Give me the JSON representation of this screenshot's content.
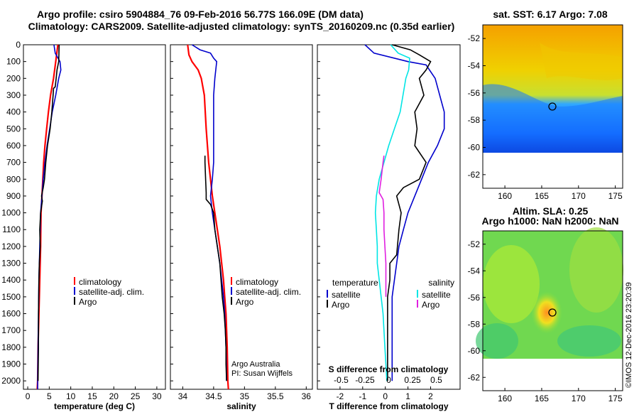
{
  "header": {
    "title_line1": "Argo profile: csiro 5904884_76 09-Feb-2016 56.77S 166.09E (DM data)",
    "title_line2": "Climatology: CARS2009. Satellite-adjusted climatology: synTS_20160209.nc (0.35d earlier)"
  },
  "colors": {
    "climatology": "#ff0000",
    "satellite": "#0000cc",
    "argo": "#000000",
    "sat_salinity": "#00e5e5",
    "argo_salinity": "#e020e0"
  },
  "chart_data": [
    {
      "type": "line",
      "id": "temperature",
      "xlabel": "temperature (deg C)",
      "ylabel": "",
      "xlim": [
        -1,
        32
      ],
      "ylim": [
        2050,
        0
      ],
      "xticks": [
        "0",
        "5",
        "10",
        "15",
        "20",
        "25",
        "30"
      ],
      "xtick_values": [
        0,
        5,
        10,
        15,
        20,
        25,
        30
      ],
      "yticks": [
        "0",
        "100",
        "200",
        "300",
        "400",
        "500",
        "600",
        "700",
        "800",
        "900",
        "1000",
        "1100",
        "1200",
        "1300",
        "1400",
        "1500",
        "1600",
        "1700",
        "1800",
        "1900",
        "2000"
      ],
      "ytick_values": [
        0,
        100,
        200,
        300,
        400,
        500,
        600,
        700,
        800,
        900,
        1000,
        1100,
        1200,
        1300,
        1400,
        1500,
        1600,
        1700,
        1800,
        1900,
        2000
      ],
      "legend": [
        "climatology",
        "satellite-adj. clim.",
        "Argo"
      ],
      "series": [
        {
          "name": "climatology",
          "color": "#ff0000",
          "points": [
            [
              7.0,
              0
            ],
            [
              6.5,
              100
            ],
            [
              6.0,
              200
            ],
            [
              5.3,
              300
            ],
            [
              4.8,
              400
            ],
            [
              4.4,
              500
            ],
            [
              4.0,
              600
            ],
            [
              3.7,
              700
            ],
            [
              3.5,
              800
            ],
            [
              3.3,
              900
            ],
            [
              3.1,
              1000
            ],
            [
              3.0,
              1200
            ],
            [
              2.8,
              1400
            ],
            [
              2.6,
              1600
            ],
            [
              2.4,
              1800
            ],
            [
              2.3,
              2000
            ],
            [
              2.2,
              2050
            ]
          ]
        },
        {
          "name": "satellite-adj. clim.",
          "color": "#0000cc",
          "points": [
            [
              6.1,
              0
            ],
            [
              6.4,
              50
            ],
            [
              7.5,
              100
            ],
            [
              7.7,
              150
            ],
            [
              7.2,
              200
            ],
            [
              6.5,
              300
            ],
            [
              5.7,
              400
            ],
            [
              5.1,
              500
            ],
            [
              4.5,
              600
            ],
            [
              4.0,
              700
            ],
            [
              3.6,
              800
            ],
            [
              3.3,
              900
            ],
            [
              3.0,
              1000
            ],
            [
              2.8,
              1200
            ],
            [
              2.6,
              1400
            ],
            [
              2.5,
              1600
            ],
            [
              2.4,
              1800
            ],
            [
              2.3,
              2000
            ],
            [
              2.3,
              2050
            ]
          ]
        },
        {
          "name": "Argo",
          "color": "#000000",
          "points": [
            [
              7.3,
              0
            ],
            [
              7.2,
              100
            ],
            [
              6.8,
              150
            ],
            [
              6.6,
              200
            ],
            [
              6.4,
              250
            ],
            [
              6.0,
              260
            ],
            [
              5.9,
              300
            ],
            [
              5.6,
              400
            ],
            [
              5.2,
              500
            ],
            [
              4.6,
              600
            ],
            [
              4.2,
              700
            ],
            [
              3.9,
              800
            ],
            [
              3.6,
              850
            ],
            [
              3.2,
              900
            ],
            [
              3.4,
              930
            ],
            [
              3.0,
              1000
            ],
            [
              2.8,
              1100
            ],
            [
              2.9,
              1200
            ],
            [
              2.7,
              1300
            ],
            [
              2.6,
              1400
            ],
            [
              2.5,
              1600
            ],
            [
              2.5,
              1800
            ],
            [
              2.4,
              2000
            ]
          ]
        }
      ]
    },
    {
      "type": "line",
      "id": "salinity",
      "xlabel": "salinity",
      "xlim": [
        33.8,
        36.1
      ],
      "ylim": [
        2050,
        0
      ],
      "xticks": [
        "34",
        "34.5",
        "35",
        "35.5",
        "36"
      ],
      "xtick_values": [
        34,
        34.5,
        35,
        35.5,
        36
      ],
      "legend": [
        "climatology",
        "satellite-adj. clim.",
        "Argo"
      ],
      "series": [
        {
          "name": "climatology",
          "color": "#ff0000",
          "points": [
            [
              34.08,
              0
            ],
            [
              34.1,
              60
            ],
            [
              34.15,
              100
            ],
            [
              34.25,
              150
            ],
            [
              34.3,
              200
            ],
            [
              34.35,
              300
            ],
            [
              34.38,
              500
            ],
            [
              34.42,
              700
            ],
            [
              34.45,
              800
            ],
            [
              34.48,
              900
            ],
            [
              34.52,
              1000
            ],
            [
              34.56,
              1100
            ],
            [
              34.6,
              1200
            ],
            [
              34.63,
              1300
            ],
            [
              34.66,
              1400
            ],
            [
              34.68,
              1500
            ],
            [
              34.7,
              1600
            ],
            [
              34.72,
              1800
            ],
            [
              34.73,
              2000
            ],
            [
              34.74,
              2050
            ]
          ]
        },
        {
          "name": "satellite-adj. clim.",
          "color": "#0000cc",
          "points": [
            [
              34.15,
              0
            ],
            [
              34.28,
              30
            ],
            [
              34.45,
              50
            ],
            [
              34.5,
              80
            ],
            [
              34.55,
              100
            ],
            [
              34.52,
              200
            ],
            [
              34.5,
              300
            ],
            [
              34.5,
              500
            ],
            [
              34.5,
              700
            ],
            [
              34.48,
              800
            ],
            [
              34.45,
              900
            ],
            [
              34.48,
              1000
            ],
            [
              34.52,
              1100
            ],
            [
              34.56,
              1200
            ],
            [
              34.6,
              1300
            ],
            [
              34.63,
              1400
            ],
            [
              34.66,
              1500
            ],
            [
              34.68,
              1600
            ],
            [
              34.7,
              1800
            ],
            [
              34.71,
              2000
            ]
          ]
        },
        {
          "name": "Argo",
          "color": "#000000",
          "points": [
            [
              34.36,
              660
            ],
            [
              34.36,
              700
            ],
            [
              34.37,
              800
            ],
            [
              34.38,
              880
            ],
            [
              34.38,
              920
            ],
            [
              34.45,
              950
            ],
            [
              34.5,
              1000
            ],
            [
              34.52,
              1100
            ],
            [
              34.56,
              1200
            ],
            [
              34.6,
              1300
            ],
            [
              34.62,
              1400
            ],
            [
              34.64,
              1500
            ],
            [
              34.67,
              1600
            ],
            [
              34.69,
              1700
            ],
            [
              34.7,
              1800
            ],
            [
              34.7,
              1900
            ],
            [
              34.71,
              2000
            ]
          ]
        }
      ],
      "annotations": [
        "Argo Australia",
        "PI: Susan Wijffels"
      ]
    },
    {
      "type": "line",
      "id": "difference",
      "xlabel": "T difference from climatology",
      "xlabel_top": "S difference from climatology",
      "xlim": [
        -3,
        3.3
      ],
      "ylim": [
        2050,
        0
      ],
      "xticks": [
        "-2",
        "-1",
        "0",
        "1",
        "2"
      ],
      "xtick_values": [
        -2,
        -1,
        0,
        1,
        2
      ],
      "sticks": [
        "-0.5",
        "-0.25",
        "0",
        "0.25",
        "0.5"
      ],
      "stick_values": [
        -0.5,
        -0.25,
        0,
        0.25,
        0.5
      ],
      "legend_left_title": "temperature",
      "legend_right_title": "salinity",
      "legend_left": [
        "satellite",
        "Argo"
      ],
      "legend_right": [
        "satellite",
        "Argo"
      ],
      "series": [
        {
          "name": "T satellite",
          "color": "#0000cc",
          "axis": "T",
          "points": [
            [
              -0.9,
              0
            ],
            [
              -0.5,
              50
            ],
            [
              1.0,
              100
            ],
            [
              1.8,
              120
            ],
            [
              2.2,
              200
            ],
            [
              2.4,
              300
            ],
            [
              2.6,
              400
            ],
            [
              2.6,
              500
            ],
            [
              2.3,
              600
            ],
            [
              1.9,
              700
            ],
            [
              1.6,
              800
            ],
            [
              1.3,
              900
            ],
            [
              1.0,
              1000
            ],
            [
              0.8,
              1100
            ],
            [
              0.6,
              1200
            ],
            [
              0.5,
              1300
            ],
            [
              0.4,
              1400
            ],
            [
              0.3,
              1500
            ],
            [
              0.3,
              1700
            ],
            [
              0.3,
              2000
            ]
          ]
        },
        {
          "name": "T Argo",
          "color": "#000000",
          "axis": "T",
          "points": [
            [
              0.3,
              0
            ],
            [
              1.1,
              30
            ],
            [
              1.5,
              60
            ],
            [
              2.0,
              100
            ],
            [
              1.8,
              150
            ],
            [
              1.5,
              200
            ],
            [
              1.7,
              300
            ],
            [
              1.3,
              400
            ],
            [
              1.4,
              500
            ],
            [
              1.3,
              600
            ],
            [
              1.8,
              700
            ],
            [
              1.5,
              800
            ],
            [
              0.8,
              850
            ],
            [
              0.5,
              900
            ],
            [
              0.7,
              1000
            ],
            [
              0.6,
              1100
            ],
            [
              0.5,
              1250
            ],
            [
              0.2,
              1300
            ],
            [
              0.2,
              1400
            ],
            [
              0.1,
              1500
            ],
            [
              0.1,
              2000
            ]
          ]
        },
        {
          "name": "S satellite",
          "color": "#00e5e5",
          "axis": "S",
          "points": [
            [
              0.02,
              0
            ],
            [
              0.1,
              50
            ],
            [
              0.22,
              80
            ],
            [
              0.21,
              150
            ],
            [
              0.18,
              200
            ],
            [
              0.15,
              300
            ],
            [
              0.12,
              400
            ],
            [
              0.06,
              500
            ],
            [
              0.0,
              600
            ],
            [
              -0.05,
              700
            ],
            [
              -0.1,
              800
            ],
            [
              -0.13,
              900
            ],
            [
              -0.14,
              1000
            ],
            [
              -0.13,
              1100
            ],
            [
              -0.12,
              1200
            ],
            [
              -0.12,
              1300
            ],
            [
              -0.1,
              1400
            ],
            [
              -0.08,
              1500
            ],
            [
              -0.06,
              1600
            ],
            [
              -0.05,
              1700
            ],
            [
              -0.04,
              1800
            ],
            [
              -0.03,
              1900
            ],
            [
              -0.02,
              2000
            ]
          ]
        },
        {
          "name": "S Argo",
          "color": "#e020e0",
          "axis": "S",
          "points": [
            [
              -0.05,
              660
            ],
            [
              -0.06,
              700
            ],
            [
              -0.08,
              800
            ],
            [
              -0.1,
              880
            ],
            [
              -0.06,
              920
            ],
            [
              -0.05,
              1000
            ],
            [
              -0.05,
              1100
            ],
            [
              -0.04,
              1200
            ],
            [
              -0.03,
              1300
            ],
            [
              -0.03,
              1400
            ],
            [
              -0.03,
              1500
            ]
          ]
        }
      ]
    },
    {
      "type": "heatmap",
      "id": "sst_map",
      "title": "sat. SST: 6.17 Argo: 7.08",
      "xticks": [
        "160",
        "165",
        "170",
        "175"
      ],
      "xtick_values": [
        160,
        165,
        170,
        175
      ],
      "yticks": [
        "-52",
        "-54",
        "-56",
        "-58",
        "-60",
        "-62"
      ],
      "ytick_values": [
        -52,
        -54,
        -56,
        -58,
        -60,
        -62
      ],
      "xlim": [
        157,
        176
      ],
      "ylim": [
        -63,
        -51
      ]
    },
    {
      "type": "heatmap",
      "id": "sla_map",
      "title_line1": "Altim. SLA: 0.25",
      "title_line2": "Argo h1000: NaN h2000: NaN",
      "xticks": [
        "160",
        "165",
        "170",
        "175"
      ],
      "xtick_values": [
        160,
        165,
        170,
        175
      ],
      "yticks": [
        "-52",
        "-54",
        "-56",
        "-58",
        "-60",
        "-62"
      ],
      "ytick_values": [
        -52,
        -54,
        -56,
        -58,
        -60,
        -62
      ],
      "xlim": [
        157,
        176
      ],
      "ylim": [
        -63,
        -51
      ]
    }
  ],
  "credit": "©IMOS 12-Dec-2016 23:20:39"
}
